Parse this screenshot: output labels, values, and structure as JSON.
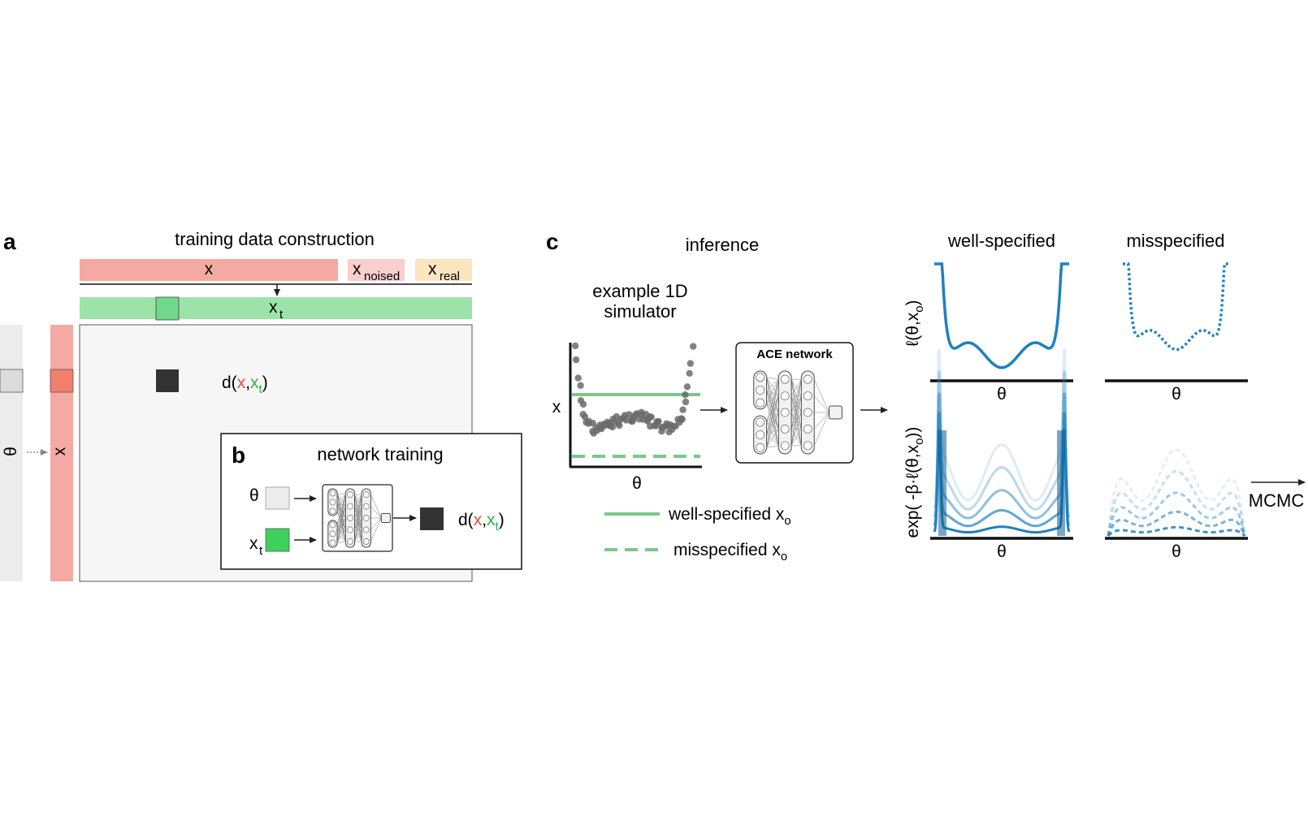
{
  "panels": {
    "a": {
      "letter": "a",
      "title": "training data construction",
      "segments": {
        "x": "x",
        "x_noised": "x",
        "x_noised_sub": "noised",
        "x_real": "x",
        "x_real_sub": "real"
      },
      "xt": "x",
      "xt_sub": "t",
      "theta": "θ",
      "x_col": "x",
      "distance": {
        "d": "d(",
        "x": "x",
        "comma": ",",
        "xt": "x",
        "xt_sub": "t",
        "close": ")"
      }
    },
    "b": {
      "letter": "b",
      "title": "network training",
      "theta": "θ",
      "xt": "x",
      "xt_sub": "t",
      "distance": {
        "d": "d(",
        "x": "x",
        "comma": ",",
        "xt": "x",
        "xt_sub": "t",
        "close": ")"
      }
    },
    "c": {
      "letter": "c",
      "title": "inference",
      "simulator_title_1": "example 1D",
      "simulator_title_2": "simulator",
      "sim_xlabel": "θ",
      "sim_ylabel": "x",
      "network_label": "ACE network",
      "legend": {
        "well": "well-specified x",
        "well_sub": "o",
        "mis": "misspecified x",
        "mis_sub": "o"
      },
      "col_well": "well-specified",
      "col_mis": "misspecified",
      "row1_ylabel": "ℓ(θ,x",
      "row1_ylabel_sub": "o",
      "row1_ylabel_end": ")",
      "row2_ylabel": "exp( -β·ℓ(θ,x",
      "row2_ylabel_sub": "o",
      "row2_ylabel_end": "))",
      "plot_xlabel": "θ",
      "mcmc": "MCMC"
    }
  },
  "colors": {
    "x_red": "#f4aaa2",
    "x_noised": "#f9cfcd",
    "x_real": "#fbe6bf",
    "xt_green": "#9ce3a8",
    "theta_gray": "#ececec",
    "dark_square": "#333333",
    "green_line": "#79c98b",
    "blue": "#1f80bf",
    "red_text": "#e8493a",
    "green_text": "#2cb24a"
  }
}
